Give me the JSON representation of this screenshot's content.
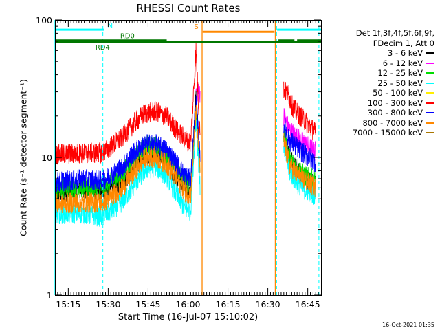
{
  "chart_data": {
    "type": "line",
    "title": "RHESSI Count Rates",
    "xlabel": "Start Time (16-Jul-07 15:10:02)",
    "ylabel": "Count Rate (s⁻¹ detector segment⁻¹)",
    "ylog": true,
    "ylim": [
      1,
      100
    ],
    "ytick_labels": [
      "1",
      "10",
      "100"
    ],
    "x_range_minutes": [
      0,
      100
    ],
    "xtick_labels": [
      "15:15",
      "15:30",
      "15:45",
      "16:00",
      "16:15",
      "16:30",
      "16:45"
    ],
    "xtick_minutes": [
      5,
      20,
      35,
      50,
      65,
      80,
      95
    ],
    "legend_header": [
      "Det 1f,3f,4f,5f,6f,9f,",
      "FDecim 1, Att 0"
    ],
    "series": [
      {
        "name": "3 - 6 keV",
        "color": "#000000",
        "pts": [
          [
            0,
            5.5
          ],
          [
            10,
            5.8
          ],
          [
            18,
            5.7
          ],
          [
            25,
            6.6
          ],
          [
            30,
            8.5
          ],
          [
            34,
            10.5
          ],
          [
            38,
            10.8
          ],
          [
            42,
            9.3
          ],
          [
            46,
            6.9
          ],
          [
            49,
            6.1
          ],
          [
            51,
            5.6
          ],
          [
            53,
            30
          ],
          [
            54.5,
            9
          ],
          [
            86,
            14.5
          ],
          [
            88,
            10
          ],
          [
            91,
            8
          ],
          [
            94,
            7
          ],
          [
            98,
            6.2
          ]
        ]
      },
      {
        "name": "6 - 12 keV",
        "color": "#ff00ff",
        "pts": [
          [
            53,
            30
          ],
          [
            86,
            20
          ],
          [
            88,
            16
          ],
          [
            91,
            14
          ],
          [
            94,
            12.5
          ],
          [
            98,
            11
          ]
        ]
      },
      {
        "name": "12 - 25 keV",
        "color": "#00dd00",
        "pts": [
          [
            0,
            6
          ],
          [
            10,
            6.1
          ],
          [
            18,
            6
          ],
          [
            25,
            7.5
          ],
          [
            30,
            10
          ],
          [
            34,
            12.3
          ],
          [
            38,
            12.1
          ],
          [
            42,
            10.6
          ],
          [
            46,
            8
          ],
          [
            49,
            6.7
          ],
          [
            51,
            6.4
          ],
          [
            53,
            20
          ],
          [
            54.5,
            9
          ],
          [
            86,
            15
          ],
          [
            88,
            10
          ],
          [
            91,
            8.5
          ],
          [
            94,
            7.3
          ],
          [
            98,
            6.8
          ]
        ]
      },
      {
        "name": "25 - 50 keV",
        "color": "#00ffff",
        "pts": [
          [
            0,
            3.9
          ],
          [
            10,
            3.9
          ],
          [
            18,
            3.7
          ],
          [
            25,
            4.7
          ],
          [
            30,
            6.4
          ],
          [
            34,
            8.2
          ],
          [
            38,
            8.5
          ],
          [
            42,
            7.3
          ],
          [
            46,
            5.2
          ],
          [
            49,
            4.2
          ],
          [
            51,
            4.1
          ],
          [
            53,
            20
          ],
          [
            54.5,
            6
          ],
          [
            86,
            12.5
          ],
          [
            88,
            8
          ],
          [
            91,
            6.5
          ],
          [
            94,
            5.8
          ],
          [
            98,
            5.3
          ]
        ]
      },
      {
        "name": "50 - 100 keV",
        "color": "#ffee00",
        "pts": []
      },
      {
        "name": "100 - 300 keV",
        "color": "#ff0000",
        "pts": [
          [
            0,
            10.5
          ],
          [
            10,
            10.7
          ],
          [
            18,
            10.8
          ],
          [
            25,
            13.7
          ],
          [
            30,
            18
          ],
          [
            34,
            21
          ],
          [
            38,
            21.6
          ],
          [
            42,
            19.8
          ],
          [
            46,
            15.5
          ],
          [
            49,
            13.5
          ],
          [
            51,
            12.8
          ],
          [
            53,
            60
          ],
          [
            54.5,
            15
          ],
          [
            86,
            31
          ],
          [
            88,
            28
          ],
          [
            89,
            24
          ],
          [
            91,
            21
          ],
          [
            94,
            18.5
          ],
          [
            98,
            15
          ]
        ]
      },
      {
        "name": "300 - 800 keV",
        "color": "#0000ff",
        "pts": [
          [
            0,
            6.6
          ],
          [
            10,
            6.9
          ],
          [
            18,
            6.8
          ],
          [
            25,
            8.4
          ],
          [
            30,
            11
          ],
          [
            34,
            12.5
          ],
          [
            38,
            12.4
          ],
          [
            42,
            11.2
          ],
          [
            46,
            8.9
          ],
          [
            49,
            7.3
          ],
          [
            51,
            7
          ],
          [
            53,
            25
          ],
          [
            54.5,
            10
          ],
          [
            86,
            17.5
          ],
          [
            88,
            13.5
          ],
          [
            91,
            11.8
          ],
          [
            94,
            10.5
          ],
          [
            98,
            9.2
          ]
        ]
      },
      {
        "name": "800 - 7000 keV",
        "color": "#ff8800",
        "pts": [
          [
            0,
            4.6
          ],
          [
            10,
            4.7
          ],
          [
            18,
            4.7
          ],
          [
            25,
            5.9
          ],
          [
            30,
            8
          ],
          [
            34,
            10
          ],
          [
            38,
            10
          ],
          [
            42,
            8.9
          ],
          [
            46,
            6.8
          ],
          [
            49,
            5.6
          ],
          [
            51,
            5.3
          ],
          [
            53,
            22
          ],
          [
            54.5,
            8
          ],
          [
            86,
            13
          ],
          [
            88,
            9
          ],
          [
            91,
            7.5
          ],
          [
            94,
            6.8
          ],
          [
            98,
            6
          ]
        ]
      },
      {
        "name": "7000 - 15000 keV",
        "color": "#aa7700",
        "pts": []
      }
    ],
    "flags": [
      {
        "label": "N",
        "color": "#00ffff",
        "segments": [
          [
            0,
            18.5
          ],
          [
            83.5,
            100
          ]
        ],
        "level": 85
      },
      {
        "label": "S",
        "color": "#ff8800",
        "segments": [
          [
            55.5,
            82.5
          ]
        ],
        "level": 82
      },
      {
        "label": "RD0",
        "color": "#007700",
        "segments": [
          [
            0,
            42
          ],
          [
            84,
            90
          ],
          [
            91,
            100
          ]
        ],
        "level": 71
      },
      {
        "label": "RD4",
        "color": "#007700",
        "segments": [
          [
            0,
            100
          ]
        ],
        "level": 69
      }
    ],
    "dashed_vlines_minutes": [
      18,
      83.3,
      99.2
    ],
    "solid_vlines": [
      {
        "minute": 0,
        "color": "#00ffff"
      },
      {
        "minute": 55.3,
        "color": "#ff8800"
      },
      {
        "minute": 82.8,
        "color": "#ff8800"
      }
    ]
  },
  "timestamp": "16-Oct-2021 01:35"
}
